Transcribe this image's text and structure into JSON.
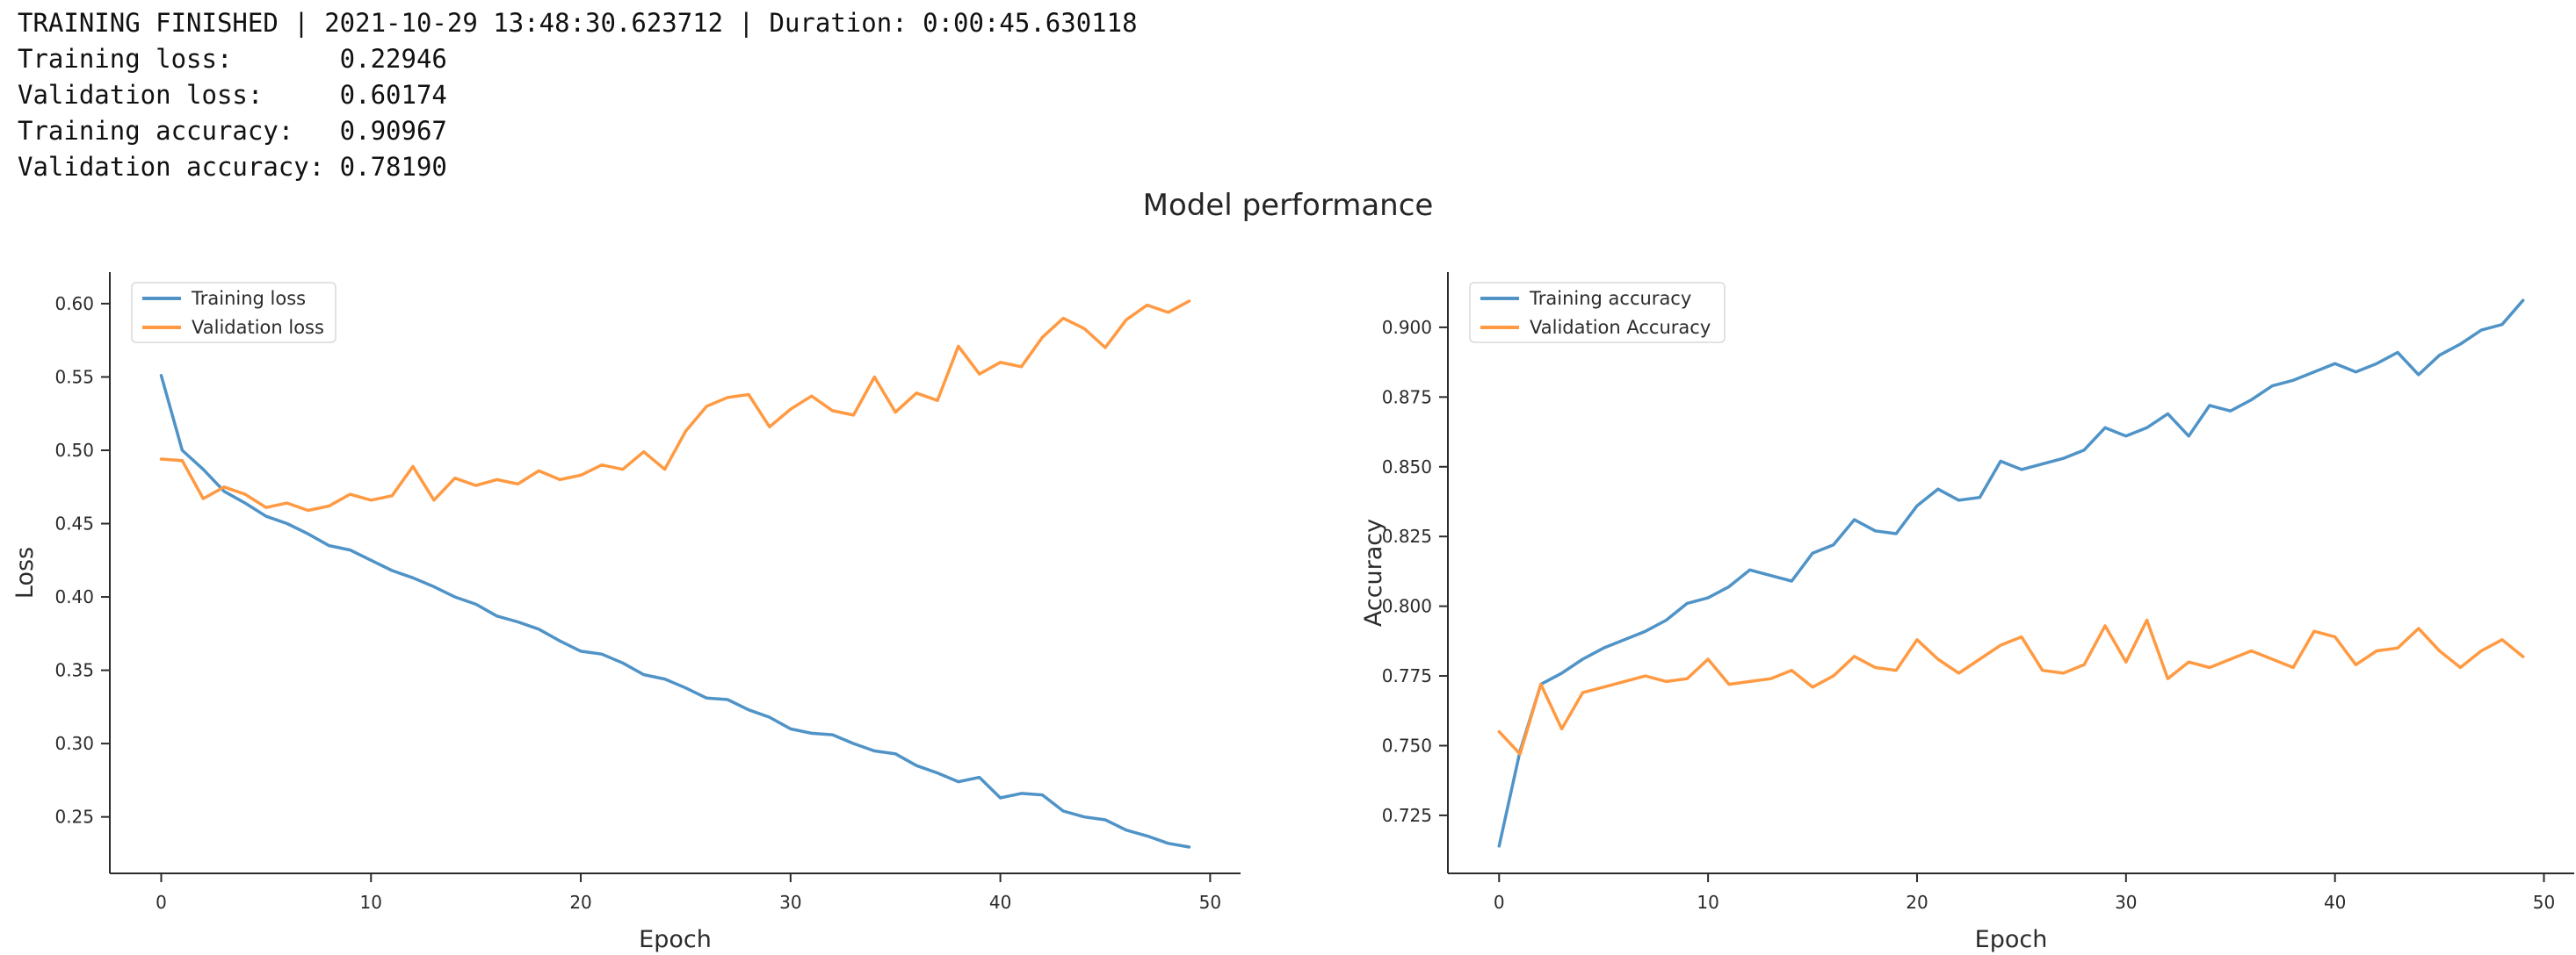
{
  "header": {
    "lines": [
      "TRAINING FINISHED | 2021-10-29 13:48:30.623712 | Duration: 0:00:45.630118",
      "Training loss:       0.22946",
      "Validation loss:     0.60174",
      "Training accuracy:   0.90967",
      "Validation accuracy: 0.78190"
    ]
  },
  "figure": {
    "title": "Model performance"
  },
  "colors": {
    "train_line": "#4f93c7",
    "val_line": "#ff9a42",
    "axis": "#2b2b2b",
    "legend_border": "#d9d9d9"
  },
  "chart_data": [
    {
      "id": "loss-chart",
      "type": "line",
      "title": "",
      "xlabel": "Epoch",
      "ylabel": "Loss",
      "grid": false,
      "legend_position": "upper-left",
      "xlim": [
        -2.45,
        51.45
      ],
      "ylim": [
        0.2115,
        0.6215
      ],
      "xticks": [
        0,
        10,
        20,
        30,
        40,
        50
      ],
      "yticks": [
        0.25,
        0.3,
        0.35,
        0.4,
        0.45,
        0.5,
        0.55,
        0.6
      ],
      "ytick_labels": [
        "0.25",
        "0.30",
        "0.35",
        "0.40",
        "0.45",
        "0.50",
        "0.55",
        "0.60"
      ],
      "x": [
        0,
        1,
        2,
        3,
        4,
        5,
        6,
        7,
        8,
        9,
        10,
        11,
        12,
        13,
        14,
        15,
        16,
        17,
        18,
        19,
        20,
        21,
        22,
        23,
        24,
        25,
        26,
        27,
        28,
        29,
        30,
        31,
        32,
        33,
        34,
        35,
        36,
        37,
        38,
        39,
        40,
        41,
        42,
        43,
        44,
        45,
        46,
        47,
        48,
        49
      ],
      "series": [
        {
          "name": "Training loss",
          "color": "#4f93c7",
          "values": [
            0.551,
            0.5,
            0.487,
            0.472,
            0.464,
            0.455,
            0.45,
            0.443,
            0.435,
            0.432,
            0.425,
            0.418,
            0.413,
            0.407,
            0.4,
            0.395,
            0.387,
            0.383,
            0.378,
            0.37,
            0.363,
            0.361,
            0.355,
            0.347,
            0.344,
            0.338,
            0.331,
            0.33,
            0.323,
            0.318,
            0.31,
            0.307,
            0.306,
            0.3,
            0.295,
            0.293,
            0.285,
            0.28,
            0.274,
            0.277,
            0.263,
            0.266,
            0.265,
            0.254,
            0.25,
            0.248,
            0.241,
            0.237,
            0.232,
            0.22946
          ]
        },
        {
          "name": "Validation loss",
          "color": "#ff9a42",
          "values": [
            0.494,
            0.493,
            0.467,
            0.475,
            0.47,
            0.461,
            0.464,
            0.459,
            0.462,
            0.47,
            0.466,
            0.469,
            0.489,
            0.466,
            0.481,
            0.476,
            0.48,
            0.477,
            0.486,
            0.48,
            0.483,
            0.49,
            0.487,
            0.499,
            0.487,
            0.513,
            0.53,
            0.536,
            0.538,
            0.516,
            0.528,
            0.537,
            0.527,
            0.524,
            0.55,
            0.526,
            0.539,
            0.534,
            0.571,
            0.552,
            0.56,
            0.557,
            0.577,
            0.59,
            0.583,
            0.57,
            0.589,
            0.599,
            0.594,
            0.60174
          ]
        }
      ]
    },
    {
      "id": "accuracy-chart",
      "type": "line",
      "title": "",
      "xlabel": "Epoch",
      "ylabel": "Accuracy",
      "grid": false,
      "legend_position": "upper-left",
      "xlim": [
        -2.45,
        51.45
      ],
      "ylim": [
        0.7042,
        0.9198
      ],
      "xticks": [
        0,
        10,
        20,
        30,
        40,
        50
      ],
      "yticks": [
        0.725,
        0.75,
        0.775,
        0.8,
        0.825,
        0.85,
        0.875,
        0.9
      ],
      "ytick_labels": [
        "0.725",
        "0.750",
        "0.775",
        "0.800",
        "0.825",
        "0.850",
        "0.875",
        "0.900"
      ],
      "x": [
        0,
        1,
        2,
        3,
        4,
        5,
        6,
        7,
        8,
        9,
        10,
        11,
        12,
        13,
        14,
        15,
        16,
        17,
        18,
        19,
        20,
        21,
        22,
        23,
        24,
        25,
        26,
        27,
        28,
        29,
        30,
        31,
        32,
        33,
        34,
        35,
        36,
        37,
        38,
        39,
        40,
        41,
        42,
        43,
        44,
        45,
        46,
        47,
        48,
        49
      ],
      "series": [
        {
          "name": "Training accuracy",
          "color": "#4f93c7",
          "values": [
            0.714,
            0.748,
            0.772,
            0.776,
            0.781,
            0.785,
            0.788,
            0.791,
            0.795,
            0.801,
            0.803,
            0.807,
            0.813,
            0.811,
            0.809,
            0.819,
            0.822,
            0.831,
            0.827,
            0.826,
            0.836,
            0.842,
            0.838,
            0.839,
            0.852,
            0.849,
            0.851,
            0.853,
            0.856,
            0.864,
            0.861,
            0.864,
            0.869,
            0.861,
            0.872,
            0.87,
            0.874,
            0.879,
            0.881,
            0.884,
            0.887,
            0.884,
            0.887,
            0.891,
            0.883,
            0.89,
            0.894,
            0.899,
            0.901,
            0.90967
          ]
        },
        {
          "name": "Validation Accuracy",
          "color": "#ff9a42",
          "values": [
            0.755,
            0.747,
            0.772,
            0.756,
            0.769,
            0.771,
            0.773,
            0.775,
            0.773,
            0.774,
            0.781,
            0.772,
            0.773,
            0.774,
            0.777,
            0.771,
            0.775,
            0.782,
            0.778,
            0.777,
            0.788,
            0.781,
            0.776,
            0.781,
            0.786,
            0.789,
            0.777,
            0.776,
            0.779,
            0.793,
            0.78,
            0.795,
            0.774,
            0.78,
            0.778,
            0.781,
            0.784,
            0.781,
            0.778,
            0.791,
            0.789,
            0.779,
            0.784,
            0.785,
            0.792,
            0.784,
            0.778,
            0.784,
            0.788,
            0.7819
          ]
        }
      ]
    }
  ]
}
